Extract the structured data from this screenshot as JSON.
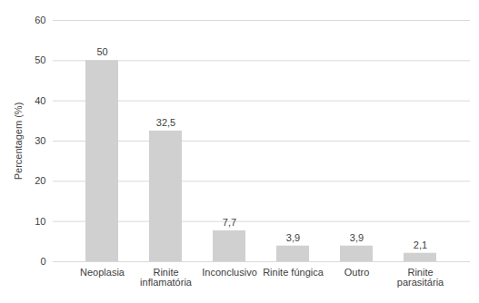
{
  "chart_data": {
    "type": "bar",
    "y_label": "Percentagem (%)",
    "categories": [
      "Neoplasia",
      "Rinite inflamatória",
      "Inconclusivo",
      "Rinite fúngica",
      "Outro",
      "Rinite parasitária"
    ],
    "values": [
      50,
      32.5,
      7.7,
      3.9,
      3.9,
      2.1
    ],
    "value_labels": [
      "50",
      "32,5",
      "7,7",
      "3,9",
      "3,9",
      "2,1"
    ],
    "color": "#d0d0d0",
    "ylim": [
      0,
      60
    ],
    "yticks": [
      0,
      10,
      20,
      30,
      40,
      50,
      60
    ],
    "grid": true,
    "data_labels": true
  }
}
